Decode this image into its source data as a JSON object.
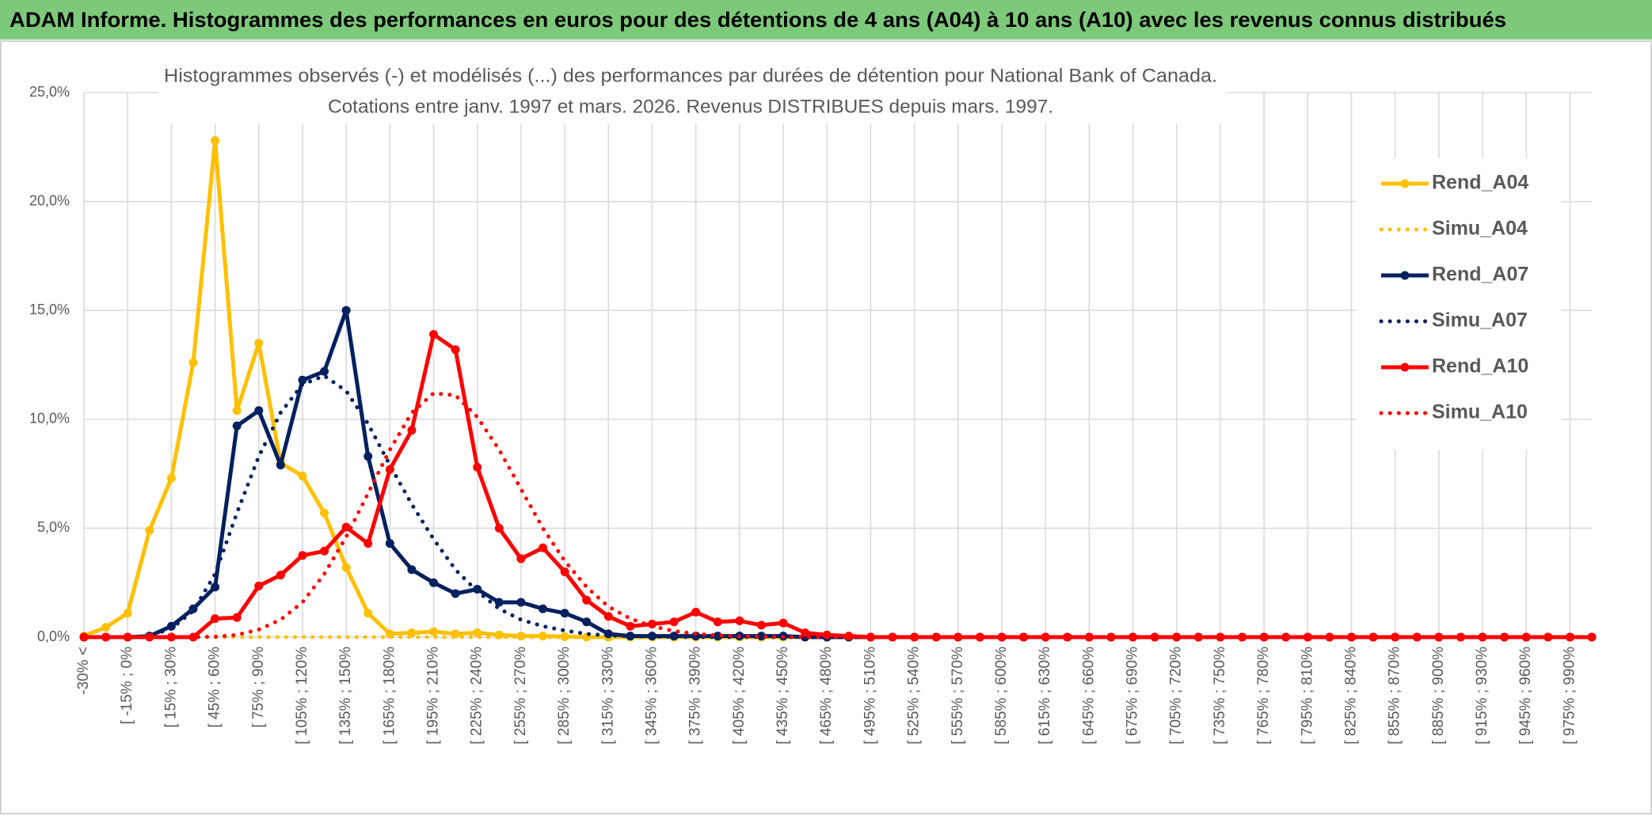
{
  "header": {
    "title": "ADAM Informe. Histogrammes des performances en euros pour des détentions de 4 ans (A04) à 10 ans (A10) avec les revenus connus distribués"
  },
  "chart_data": {
    "type": "line",
    "title": "Histogrammes observés (-) et modélisés (...) des performances par durées de détention pour National Bank of Canada.",
    "subtitle": "Cotations entre janv. 1997 et mars. 2026. Revenus DISTRIBUES depuis mars. 1997.",
    "categories": [
      "-30% <",
      null,
      "[ -15% ; 0%",
      null,
      "[ 15% ; 30%",
      null,
      "[ 45% ; 60%",
      null,
      "[ 75% ; 90%",
      null,
      "[ 105% ; 120%",
      null,
      "[ 135% ; 150%",
      null,
      "[ 165% ; 180%",
      null,
      "[ 195% ; 210%",
      null,
      "[ 225% ; 240%",
      null,
      "[ 255% ; 270%",
      null,
      "[ 285% ; 300%",
      null,
      "[ 315% ; 330%",
      null,
      "[ 345% ; 360%",
      null,
      "[ 375% ; 390%",
      null,
      "[ 405% ; 420%",
      null,
      "[ 435% ; 450%",
      null,
      "[ 465% ; 480%",
      null,
      "[ 495% ; 510%",
      null,
      "[ 525% ; 540%",
      null,
      "[ 555% ; 570%",
      null,
      "[ 585% ; 600%",
      null,
      "[ 615% ; 630%",
      null,
      "[ 645% ; 660%",
      null,
      "[ 675% ; 690%",
      null,
      "[ 705% ; 720%",
      null,
      "[ 735% ; 750%",
      null,
      "[ 765% ; 780%",
      null,
      "[ 795% ; 810%",
      null,
      "[ 825% ; 840%",
      null,
      "[ 855% ; 870%",
      null,
      "[ 885% ; 900%",
      null,
      "[ 915% ; 930%",
      null,
      "[ 945% ; 960%",
      null,
      "[ 975% ; 990%",
      null
    ],
    "series": [
      {
        "name": "Rend_A04",
        "color": "#ffc000",
        "style": "solid",
        "values": [
          0.05,
          0.45,
          1.1,
          4.9,
          7.3,
          12.6,
          22.8,
          10.4,
          13.5,
          8.0,
          7.4,
          5.7,
          3.2,
          1.1,
          0.15,
          0.2,
          0.25,
          0.15,
          0.2,
          0.1,
          0.05,
          0.05,
          0.02,
          0,
          0,
          0,
          0,
          0,
          0,
          0,
          0,
          0,
          0,
          0,
          0,
          0,
          0,
          0,
          0,
          0,
          0,
          0,
          0,
          0,
          0,
          0,
          0,
          0,
          0,
          0,
          0,
          0,
          0,
          0,
          0,
          0,
          0,
          0,
          0,
          0,
          0,
          0,
          0,
          0,
          0,
          0,
          0,
          0,
          0,
          0
        ]
      },
      {
        "name": "Simu_A04",
        "color": "#ffc000",
        "style": "dotted",
        "values": [
          0,
          0,
          0,
          0,
          0,
          0,
          0,
          0,
          0,
          0,
          0,
          0,
          0,
          0,
          0,
          0,
          0,
          0,
          0,
          0,
          0,
          0,
          0,
          0,
          0,
          0,
          0,
          0,
          0,
          0,
          0,
          0,
          0,
          0,
          0,
          0,
          0,
          0,
          0,
          0,
          0,
          0,
          0,
          0,
          0,
          0,
          0,
          0,
          0,
          0,
          0,
          0,
          0,
          0,
          0,
          0,
          0,
          0,
          0,
          0,
          0,
          0,
          0,
          0,
          0,
          0,
          0,
          0,
          0,
          0
        ]
      },
      {
        "name": "Rend_A07",
        "color": "#002060",
        "style": "solid",
        "values": [
          0,
          0,
          0,
          0.05,
          0.5,
          1.3,
          2.3,
          9.7,
          10.4,
          7.9,
          11.8,
          12.2,
          15.0,
          8.3,
          4.3,
          3.1,
          2.5,
          2.0,
          2.2,
          1.6,
          1.6,
          1.3,
          1.1,
          0.7,
          0.15,
          0.05,
          0.05,
          0.05,
          0.05,
          0.05,
          0.05,
          0.05,
          0.05,
          0,
          0,
          0,
          0,
          0,
          0,
          0,
          0,
          0,
          0,
          0,
          0,
          0,
          0,
          0,
          0,
          0,
          0,
          0,
          0,
          0,
          0,
          0,
          0,
          0,
          0,
          0,
          0,
          0,
          0,
          0,
          0,
          0,
          0,
          0,
          0,
          0
        ]
      },
      {
        "name": "Simu_A07",
        "color": "#002060",
        "style": "dotted",
        "values": [
          0,
          0,
          0,
          0.05,
          0.4,
          1.2,
          2.9,
          5.7,
          8.3,
          10.3,
          11.6,
          12.0,
          11.3,
          9.8,
          7.9,
          6.1,
          4.5,
          3.1,
          2.1,
          1.3,
          0.8,
          0.5,
          0.3,
          0.15,
          0.08,
          0.04,
          0.02,
          0.01,
          0,
          0,
          0,
          0,
          0,
          0,
          0,
          0,
          0,
          0,
          0,
          0,
          0,
          0,
          0,
          0,
          0,
          0,
          0,
          0,
          0,
          0,
          0,
          0,
          0,
          0,
          0,
          0,
          0,
          0,
          0,
          0,
          0,
          0,
          0,
          0,
          0,
          0,
          0,
          0,
          0,
          0
        ]
      },
      {
        "name": "Rend_A10",
        "color": "#ff0000",
        "style": "solid",
        "values": [
          0,
          0,
          0,
          0,
          0,
          0,
          0.85,
          0.9,
          2.35,
          2.85,
          3.75,
          3.95,
          5.05,
          4.3,
          7.7,
          9.5,
          13.9,
          13.2,
          7.8,
          5.0,
          3.6,
          4.1,
          3.0,
          1.7,
          0.95,
          0.5,
          0.6,
          0.7,
          1.15,
          0.7,
          0.75,
          0.55,
          0.65,
          0.2,
          0.1,
          0.05,
          0,
          0,
          0,
          0,
          0,
          0,
          0,
          0,
          0,
          0,
          0,
          0,
          0,
          0,
          0,
          0,
          0,
          0,
          0,
          0,
          0,
          0,
          0,
          0,
          0,
          0,
          0,
          0,
          0,
          0,
          0,
          0,
          0,
          0
        ]
      },
      {
        "name": "Simu_A10",
        "color": "#ff0000",
        "style": "dotted",
        "values": [
          0,
          0,
          0,
          0,
          0,
          0,
          0.02,
          0.1,
          0.35,
          0.8,
          1.6,
          2.9,
          4.6,
          6.6,
          8.6,
          10.3,
          11.2,
          11.1,
          10.1,
          8.6,
          6.8,
          5.0,
          3.5,
          2.3,
          1.4,
          0.85,
          0.5,
          0.28,
          0.15,
          0.08,
          0.04,
          0.02,
          0.01,
          0,
          0,
          0,
          0,
          0,
          0,
          0,
          0,
          0,
          0,
          0,
          0,
          0,
          0,
          0,
          0,
          0,
          0,
          0,
          0,
          0,
          0,
          0,
          0,
          0,
          0,
          0,
          0,
          0,
          0,
          0,
          0,
          0,
          0,
          0,
          0,
          0
        ]
      }
    ],
    "ylim": [
      0,
      25
    ],
    "yticks": [
      {
        "value": 0,
        "label": "0,0%"
      },
      {
        "value": 5,
        "label": "5,0%"
      },
      {
        "value": 10,
        "label": "10,0%"
      },
      {
        "value": 15,
        "label": "15,0%"
      },
      {
        "value": 20,
        "label": "20,0%"
      },
      {
        "value": 25,
        "label": "25,0%"
      }
    ],
    "grid": true,
    "legend": "right"
  }
}
